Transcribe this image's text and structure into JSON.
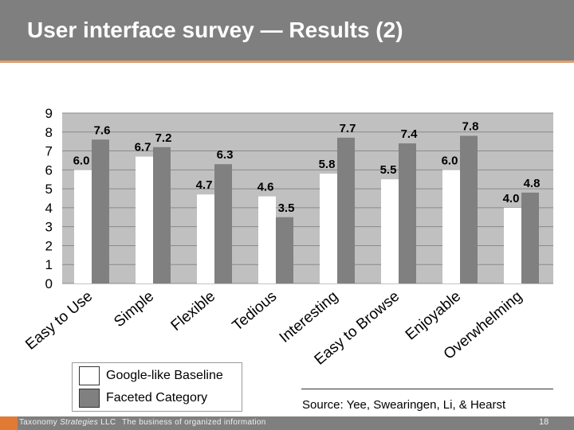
{
  "slide": {
    "title": "User interface survey — Results (2)",
    "source": "Source: Yee, Swearingen, Li, & Hearst",
    "footer_brand_a": "Taxonomy ",
    "footer_brand_b": "Strategies",
    "footer_brand_c": " LLC",
    "footer_tagline": "The business of organized information",
    "page_number": "18"
  },
  "colors": {
    "header": "#7f7f7f",
    "accent": "#e07a35",
    "plot_bg": "#c0c0c0",
    "series_baseline": "#ffffff",
    "series_faceted": "#808080"
  },
  "chart_data": {
    "type": "bar",
    "title": "",
    "xlabel": "",
    "ylabel": "",
    "ylim": [
      0,
      9
    ],
    "yticks": [
      "0",
      "1",
      "2",
      "3",
      "4",
      "5",
      "6",
      "7",
      "8",
      "9"
    ],
    "grid": true,
    "legend_position": "bottom-left",
    "categories": [
      "Easy to Use",
      "Simple",
      "Flexible",
      "Tedious",
      "Interesting",
      "Easy to Browse",
      "Enjoyable",
      "Overwhelming"
    ],
    "series": [
      {
        "name": "Google-like Baseline",
        "values": [
          6.0,
          6.7,
          4.7,
          4.6,
          5.8,
          5.5,
          6.0,
          4.0
        ],
        "labels": [
          "6.0",
          "6.7",
          "4.7",
          "4.6",
          "5.8",
          "5.5",
          "6.0",
          "4.0"
        ]
      },
      {
        "name": "Faceted Category",
        "values": [
          7.6,
          7.2,
          6.3,
          3.5,
          7.7,
          7.4,
          7.8,
          4.8
        ],
        "labels": [
          "7.6",
          "7.2",
          "6.3",
          "3.5",
          "7.7",
          "7.4",
          "7.8",
          "4.8"
        ]
      }
    ]
  }
}
